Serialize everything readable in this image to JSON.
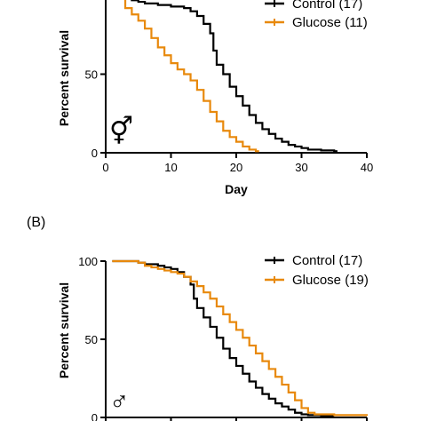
{
  "chart_data": [
    {
      "type": "line",
      "panel_label": "",
      "xlabel": "Day",
      "ylabel": "Percent survival",
      "xlim": [
        0,
        40
      ],
      "ylim": [
        0,
        100
      ],
      "x_ticks": [
        0,
        10,
        20,
        30,
        40
      ],
      "y_ticks": [
        0,
        50,
        100
      ],
      "y_tick_labels": [
        "0",
        "50",
        ""
      ],
      "x_tick_labels": [
        "0",
        "10",
        "20",
        "30",
        "40"
      ],
      "sex_symbol": "⚥",
      "step": true,
      "legend_position": "top-right",
      "series": [
        {
          "name": "Control (17)",
          "color": "#000000",
          "points": [
            [
              2,
              100
            ],
            [
              3,
              98
            ],
            [
              4,
              97
            ],
            [
              5,
              96
            ],
            [
              6,
              95
            ],
            [
              7,
              95
            ],
            [
              8,
              94
            ],
            [
              9,
              94
            ],
            [
              10,
              93
            ],
            [
              11,
              93
            ],
            [
              12,
              92
            ],
            [
              13,
              90
            ],
            [
              14,
              87
            ],
            [
              15,
              82
            ],
            [
              16,
              76
            ],
            [
              16.5,
              65
            ],
            [
              17,
              56
            ],
            [
              18,
              50
            ],
            [
              19,
              42
            ],
            [
              20,
              36
            ],
            [
              21,
              30
            ],
            [
              22,
              24
            ],
            [
              23,
              19
            ],
            [
              24,
              15
            ],
            [
              25,
              12
            ],
            [
              26,
              9
            ],
            [
              27,
              7
            ],
            [
              28,
              5
            ],
            [
              29,
              4
            ],
            [
              30,
              3
            ],
            [
              31,
              2
            ],
            [
              33,
              1.5
            ],
            [
              35,
              1
            ],
            [
              35.5,
              1
            ]
          ]
        },
        {
          "name": "Glucose (11)",
          "color": "#E8890C",
          "points": [
            [
              2,
              100
            ],
            [
              3,
              92
            ],
            [
              4,
              88
            ],
            [
              5,
              84
            ],
            [
              6,
              79
            ],
            [
              7,
              73
            ],
            [
              8,
              67
            ],
            [
              9,
              62
            ],
            [
              10,
              57
            ],
            [
              11,
              53
            ],
            [
              12,
              50
            ],
            [
              13,
              46
            ],
            [
              14,
              40
            ],
            [
              15,
              33
            ],
            [
              16,
              26
            ],
            [
              17,
              20
            ],
            [
              18,
              14
            ],
            [
              19,
              10
            ],
            [
              20,
              7
            ],
            [
              21,
              4
            ],
            [
              22,
              2
            ],
            [
              23,
              1
            ],
            [
              23.5,
              1
            ]
          ]
        }
      ]
    },
    {
      "type": "line",
      "panel_label": "(B)",
      "xlabel": "",
      "ylabel": "Percent survival",
      "xlim": [
        0,
        40
      ],
      "ylim": [
        0,
        100
      ],
      "x_ticks": [
        0,
        10,
        20,
        30,
        40
      ],
      "y_ticks": [
        0,
        50,
        100
      ],
      "y_tick_labels": [
        "0",
        "50",
        "100"
      ],
      "x_tick_labels": [
        "",
        "",
        "",
        "",
        ""
      ],
      "sex_symbol": "♂",
      "step": true,
      "legend_position": "top-right",
      "series": [
        {
          "name": "Control (17)",
          "color": "#000000",
          "points": [
            [
              1,
              100
            ],
            [
              4,
              100
            ],
            [
              5,
              99
            ],
            [
              6,
              98
            ],
            [
              7,
              98
            ],
            [
              8,
              97
            ],
            [
              9,
              96
            ],
            [
              10,
              95
            ],
            [
              11,
              93
            ],
            [
              12,
              90
            ],
            [
              13,
              85
            ],
            [
              13.5,
              76
            ],
            [
              14,
              70
            ],
            [
              15,
              64
            ],
            [
              16,
              58
            ],
            [
              17,
              51
            ],
            [
              18,
              44
            ],
            [
              19,
              38
            ],
            [
              20,
              33
            ],
            [
              21,
              28
            ],
            [
              22,
              23
            ],
            [
              23,
              19
            ],
            [
              24,
              15
            ],
            [
              25,
              12
            ],
            [
              26,
              9
            ],
            [
              27,
              7
            ],
            [
              28,
              5
            ],
            [
              29,
              3
            ],
            [
              30,
              2
            ],
            [
              31,
              1.5
            ],
            [
              33,
              1
            ],
            [
              35,
              1
            ]
          ]
        },
        {
          "name": "Glucose (19)",
          "color": "#E8890C",
          "points": [
            [
              1,
              100
            ],
            [
              4,
              100
            ],
            [
              5,
              99
            ],
            [
              6,
              97
            ],
            [
              7,
              96
            ],
            [
              8,
              95
            ],
            [
              9,
              94
            ],
            [
              10,
              93
            ],
            [
              11,
              92
            ],
            [
              12,
              90
            ],
            [
              13,
              87
            ],
            [
              14,
              84
            ],
            [
              15,
              80
            ],
            [
              16,
              76
            ],
            [
              17,
              71
            ],
            [
              18,
              66
            ],
            [
              19,
              61
            ],
            [
              20,
              56
            ],
            [
              21,
              51
            ],
            [
              22,
              46
            ],
            [
              23,
              41
            ],
            [
              24,
              36
            ],
            [
              25,
              31
            ],
            [
              26,
              26
            ],
            [
              27,
              21
            ],
            [
              28,
              16
            ],
            [
              29,
              11
            ],
            [
              30,
              6
            ],
            [
              31,
              3
            ],
            [
              32,
              2
            ],
            [
              35,
              1.5
            ],
            [
              40,
              1
            ]
          ]
        }
      ]
    }
  ]
}
